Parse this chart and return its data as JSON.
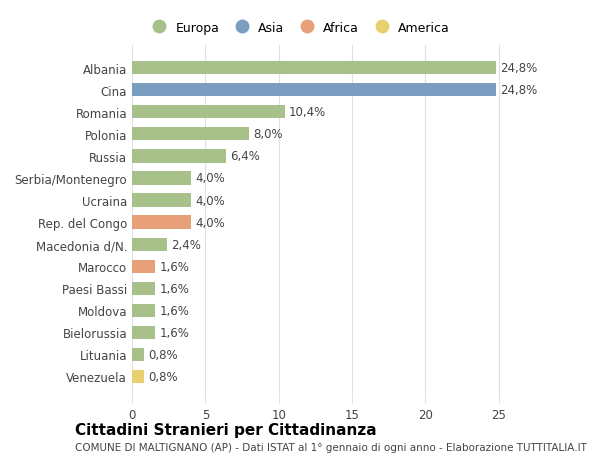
{
  "countries": [
    "Albania",
    "Cina",
    "Romania",
    "Polonia",
    "Russia",
    "Serbia/Montenegro",
    "Ucraina",
    "Rep. del Congo",
    "Macedonia d/N.",
    "Marocco",
    "Paesi Bassi",
    "Moldova",
    "Bielorussia",
    "Lituania",
    "Venezuela"
  ],
  "values": [
    24.8,
    24.8,
    10.4,
    8.0,
    6.4,
    4.0,
    4.0,
    4.0,
    2.4,
    1.6,
    1.6,
    1.6,
    1.6,
    0.8,
    0.8
  ],
  "labels": [
    "24,8%",
    "24,8%",
    "10,4%",
    "8,0%",
    "6,4%",
    "4,0%",
    "4,0%",
    "4,0%",
    "2,4%",
    "1,6%",
    "1,6%",
    "1,6%",
    "1,6%",
    "0,8%",
    "0,8%"
  ],
  "continents": [
    "Europa",
    "Asia",
    "Europa",
    "Europa",
    "Europa",
    "Europa",
    "Europa",
    "Africa",
    "Europa",
    "Africa",
    "Europa",
    "Europa",
    "Europa",
    "Europa",
    "America"
  ],
  "colors": {
    "Europa": "#a8c08a",
    "Asia": "#7a9dc0",
    "Africa": "#e8a07a",
    "America": "#e8d070"
  },
  "legend_order": [
    "Europa",
    "Asia",
    "Africa",
    "America"
  ],
  "xlim": [
    0,
    27
  ],
  "xticks": [
    0,
    5,
    10,
    15,
    20,
    25
  ],
  "background_color": "#ffffff",
  "title": "Cittadini Stranieri per Cittadinanza",
  "subtitle": "COMUNE DI MALTIGNANO (AP) - Dati ISTAT al 1° gennaio di ogni anno - Elaborazione TUTTITALIA.IT",
  "grid_color": "#e0e0e0",
  "text_color": "#444444",
  "label_fontsize": 8.5,
  "title_fontsize": 11,
  "subtitle_fontsize": 7.5,
  "bar_height": 0.6
}
